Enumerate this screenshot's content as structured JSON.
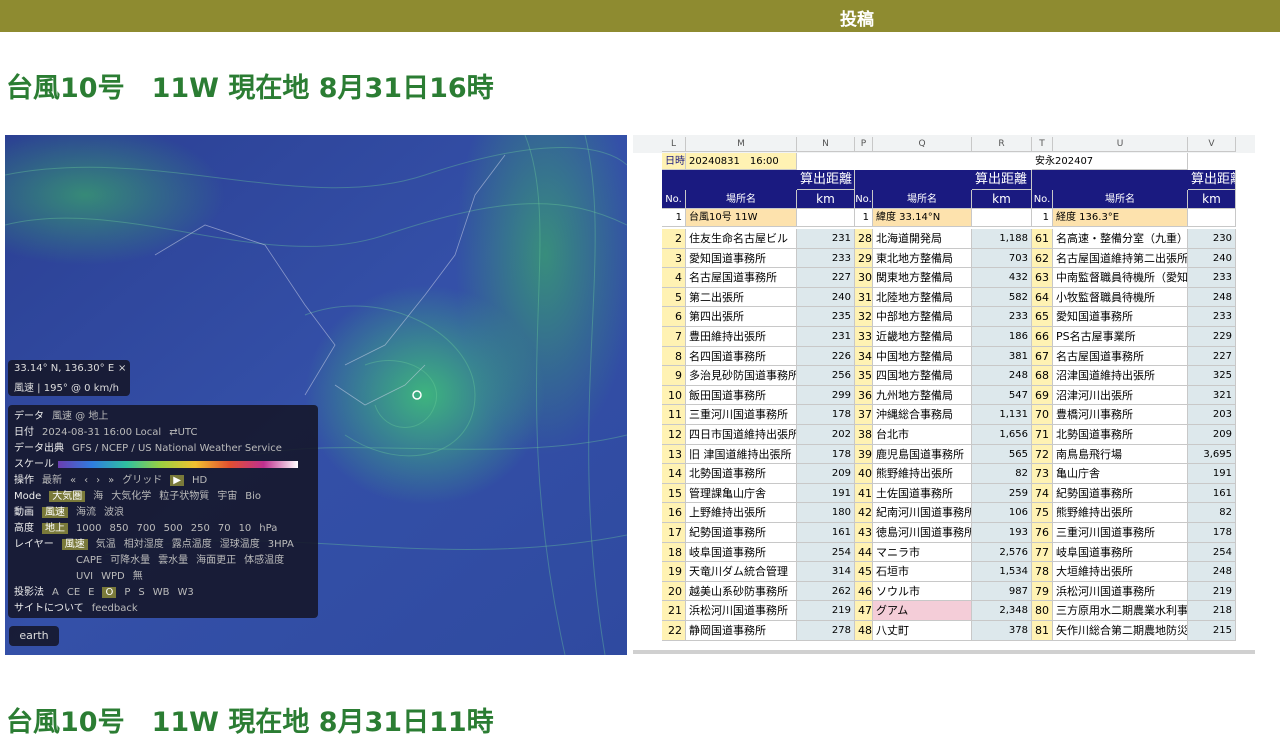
{
  "header": {
    "title": "投稿"
  },
  "sections": [
    {
      "title": "台風10号　11W 現在地 8月31日16時"
    },
    {
      "title": "台風10号　11W 現在地 8月31日11時"
    }
  ],
  "map": {
    "coords": "33.14° N, 136.30° E",
    "close": "×",
    "wind": "風速 | 195° @ 0 km/h",
    "rows": [
      {
        "label": "データ",
        "lines": [
          [
            "風速 @ 地上"
          ]
        ]
      },
      {
        "label": "日付",
        "lines": [
          [
            "2024-08-31 16:00 Local",
            "⇄UTC"
          ]
        ]
      },
      {
        "label": "データ出典",
        "lines": [
          [
            "GFS / NCEP / US National Weather Service"
          ]
        ]
      },
      {
        "label": "スケール",
        "lines": [
          []
        ],
        "scale": true
      },
      {
        "label": "操作",
        "lines": [
          [
            "最新",
            "«",
            "‹",
            "›",
            "»",
            "グリッド",
            "▶",
            "HD"
          ]
        ],
        "selected": 6
      },
      {
        "label": "Mode",
        "lines": [
          [
            "大気圏",
            "海",
            "大気化学",
            "粒子状物質",
            "宇宙",
            "Bio"
          ]
        ],
        "selected": 0
      },
      {
        "label": "動画",
        "lines": [
          [
            "風速",
            "海流",
            "波浪"
          ]
        ],
        "selected": 0
      },
      {
        "label": "高度",
        "lines": [
          [
            "地上",
            "1000",
            "850",
            "700",
            "500",
            "250",
            "70",
            "10",
            "hPa"
          ]
        ],
        "selected": 0
      },
      {
        "label": "レイヤー",
        "lines": [
          [
            "風速",
            "気温",
            "相対湿度",
            "露点温度",
            "湿球温度",
            "3HPA"
          ],
          [
            "CAPE",
            "可降水量",
            "雲水量",
            "海面更正",
            "体感温度"
          ],
          [
            "UVI",
            "WPD",
            "無"
          ]
        ],
        "selected": 0
      },
      {
        "label": "投影法",
        "lines": [
          [
            "A",
            "CE",
            "E",
            "O",
            "P",
            "S",
            "WB",
            "W3"
          ]
        ],
        "selected": 3
      },
      {
        "label": "サイトについて",
        "lines": [
          [
            "feedback"
          ]
        ]
      }
    ],
    "logo": "earth"
  },
  "sheet": {
    "columns": [
      "L",
      "M",
      "N",
      "P",
      "Q",
      "R",
      "T",
      "U",
      "V"
    ],
    "date_label": "日時",
    "date": "20240831　16:00",
    "author": "安永202407",
    "distance_header": "算出距離",
    "no_header": "No.",
    "place_header": "場所名",
    "km_header": "km",
    "blocks": [
      {
        "first": {
          "no": 1,
          "place": "台風10号 11W"
        },
        "rows": [
          [
            2,
            "住友生命名古屋ビル",
            "231"
          ],
          [
            3,
            "愛知国道事務所",
            "233"
          ],
          [
            4,
            "名古屋国道事務所",
            "227"
          ],
          [
            5,
            "第二出張所",
            "240"
          ],
          [
            6,
            "第四出張所",
            "235"
          ],
          [
            7,
            "豊田維持出張所",
            "231"
          ],
          [
            8,
            "名四国道事務所",
            "226"
          ],
          [
            9,
            "多治見砂防国道事務所",
            "256"
          ],
          [
            10,
            "飯田国道事務所",
            "299"
          ],
          [
            11,
            "三重河川国道事務所",
            "178"
          ],
          [
            12,
            "四日市国道維持出張所",
            "202"
          ],
          [
            13,
            "旧 津国道維持出張所",
            "178"
          ],
          [
            14,
            "北勢国道事務所",
            "209"
          ],
          [
            15,
            "管理課亀山庁舎",
            "191"
          ],
          [
            16,
            "上野維持出張所",
            "180"
          ],
          [
            17,
            "紀勢国道事務所",
            "161"
          ],
          [
            18,
            "岐阜国道事務所",
            "254"
          ],
          [
            19,
            "天竜川ダム統合管理",
            "314"
          ],
          [
            20,
            "越美山系砂防事務所",
            "262"
          ],
          [
            21,
            "浜松河川国道事務所",
            "219"
          ],
          [
            22,
            "静岡国道事務所",
            "278"
          ]
        ]
      },
      {
        "first": {
          "no": 1,
          "place": "緯度 33.14°N"
        },
        "rows": [
          [
            28,
            "北海道開発局",
            "1,188"
          ],
          [
            29,
            "東北地方整備局",
            "703"
          ],
          [
            30,
            "関東地方整備局",
            "432"
          ],
          [
            31,
            "北陸地方整備局",
            "582"
          ],
          [
            32,
            "中部地方整備局",
            "233"
          ],
          [
            33,
            "近畿地方整備局",
            "186"
          ],
          [
            34,
            "中国地方整備局",
            "381"
          ],
          [
            35,
            "四国地方整備局",
            "248"
          ],
          [
            36,
            "九州地方整備局",
            "547"
          ],
          [
            37,
            "沖縄総合事務局",
            "1,131"
          ],
          [
            38,
            "台北市",
            "1,656"
          ],
          [
            39,
            "鹿児島国道事務所",
            "565"
          ],
          [
            40,
            "熊野維持出張所",
            "82"
          ],
          [
            41,
            "土佐国道事務所",
            "259"
          ],
          [
            42,
            "紀南河川国道事務所",
            "106"
          ],
          [
            43,
            "徳島河川国道事務所",
            "193"
          ],
          [
            44,
            "マニラ市",
            "2,576"
          ],
          [
            45,
            "石垣市",
            "1,534"
          ],
          [
            46,
            "ソウル市",
            "987"
          ],
          [
            47,
            "グアム",
            "2,348"
          ],
          [
            48,
            "八丈町",
            "378"
          ]
        ],
        "highlight": 19
      },
      {
        "first": {
          "no": 1,
          "place": "経度 136.3°E"
        },
        "rows": [
          [
            61,
            "名高速・整備分室（九重）",
            "230"
          ],
          [
            62,
            "名古屋国道維持第二出張所",
            "240"
          ],
          [
            63,
            "中南監督職員待機所（愛知口",
            "233"
          ],
          [
            64,
            "小牧監督職員待機所",
            "248"
          ],
          [
            65,
            "愛知国道事務所",
            "233"
          ],
          [
            66,
            "PS名古屋事業所",
            "229"
          ],
          [
            67,
            "名古屋国道事務所",
            "227"
          ],
          [
            68,
            "沼津国道維持出張所",
            "325"
          ],
          [
            69,
            "沼津河川出張所",
            "321"
          ],
          [
            70,
            "豊橋河川事務所",
            "203"
          ],
          [
            71,
            "北勢国道事務所",
            "209"
          ],
          [
            72,
            "南鳥島飛行場",
            "3,695"
          ],
          [
            73,
            "亀山庁舎",
            "191"
          ],
          [
            74,
            "紀勢国道事務所",
            "161"
          ],
          [
            75,
            "熊野維持出張所",
            "82"
          ],
          [
            76,
            "三重河川国道事務所",
            "178"
          ],
          [
            77,
            "岐阜国道事務所",
            "254"
          ],
          [
            78,
            "大垣維持出張所",
            "248"
          ],
          [
            79,
            "浜松河川国道事務所",
            "219"
          ],
          [
            80,
            "三方原用水二期農業水利事",
            "218"
          ],
          [
            81,
            "矢作川総合第二期農地防災事",
            "215"
          ]
        ]
      }
    ]
  }
}
